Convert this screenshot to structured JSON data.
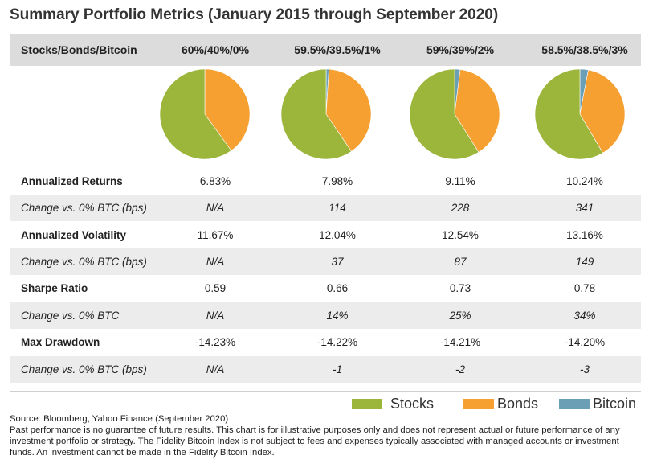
{
  "title": "Summary Portfolio Metrics (January 2015 through September 2020)",
  "header": {
    "label": "Stocks/Bonds/Bitcoin",
    "portfolios": [
      "60%/40%/0%",
      "59.5%/39.5%/1%",
      "59%/39%/2%",
      "58.5%/38.5%/3%"
    ]
  },
  "chart_data": {
    "type": "pie",
    "series_names": [
      "Stocks",
      "Bonds",
      "Bitcoin"
    ],
    "colors": {
      "Stocks": "#9cb53b",
      "Bonds": "#f5a030",
      "Bitcoin": "#6a9fb5"
    },
    "pies": [
      {
        "name": "60%/40%/0%",
        "values": [
          60,
          40,
          0
        ]
      },
      {
        "name": "59.5%/39.5%/1%",
        "values": [
          59.5,
          39.5,
          1
        ]
      },
      {
        "name": "59%/39%/2%",
        "values": [
          59,
          39,
          2
        ]
      },
      {
        "name": "58.5%/38.5%/3%",
        "values": [
          58.5,
          38.5,
          3
        ]
      }
    ]
  },
  "table": {
    "rows": [
      {
        "label": "Annualized Returns",
        "values": [
          "6.83%",
          "7.98%",
          "9.11%",
          "10.24%"
        ],
        "bold": true
      },
      {
        "label": "Change vs. 0% BTC (bps)",
        "values": [
          "N/A",
          "114",
          "228",
          "341"
        ],
        "italic": true
      },
      {
        "label": "Annualized Volatility",
        "values": [
          "11.67%",
          "12.04%",
          "12.54%",
          "13.16%"
        ],
        "bold": true
      },
      {
        "label": "Change vs. 0% BTC (bps)",
        "values": [
          "N/A",
          "37",
          "87",
          "149"
        ],
        "italic": true
      },
      {
        "label": "Sharpe Ratio",
        "values": [
          "0.59",
          "0.66",
          "0.73",
          "0.78"
        ],
        "bold": true
      },
      {
        "label": "Change vs. 0% BTC",
        "values": [
          "N/A",
          "14%",
          "25%",
          "34%"
        ],
        "italic": true
      },
      {
        "label": "Max Drawdown",
        "values": [
          "-14.23%",
          "-14.22%",
          "-14.21%",
          "-14.20%"
        ],
        "bold": true
      },
      {
        "label": "Change vs. 0% BTC (bps)",
        "values": [
          "N/A",
          "-1",
          "-2",
          "-3"
        ],
        "italic": true
      }
    ]
  },
  "legend": [
    "Stocks",
    "Bonds",
    "Bitcoin"
  ],
  "footnotes": {
    "source": "Source: Bloomberg, Yahoo Finance (September 2020)",
    "disclaimer": "Past performance is no guarantee of future results. This chart is for illustrative purposes only and does not represent actual or future performance of any investment portfolio or strategy. The Fidelity Bitcoin Index is not subject to fees and expenses typically associated with managed accounts or investment funds. An investment cannot be made in the Fidelity Bitcoin Index."
  }
}
